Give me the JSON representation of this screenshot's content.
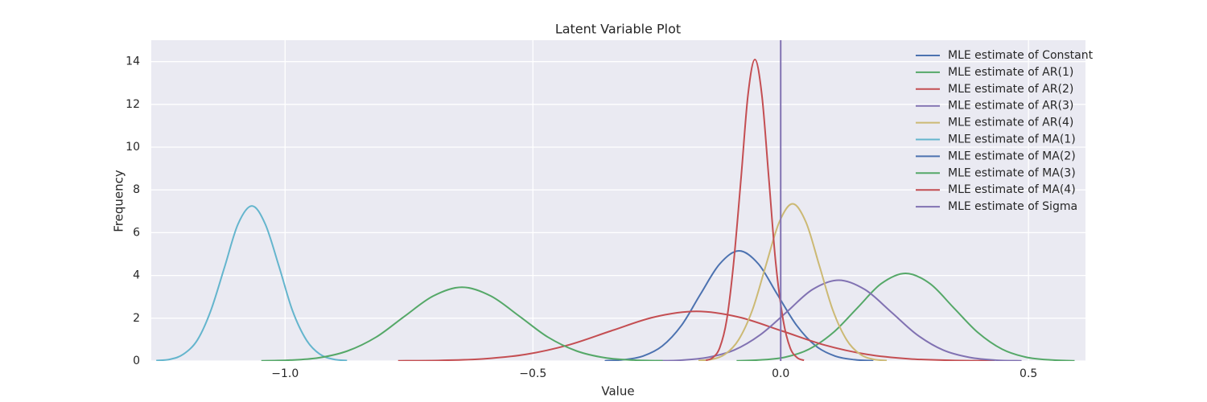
{
  "chart_data": {
    "type": "line",
    "title": "Latent Variable Plot",
    "xlabel": "Value",
    "ylabel": "Frequency",
    "xlim": [
      -1.27,
      0.615
    ],
    "ylim": [
      0,
      15
    ],
    "xticks": [
      {
        "value": -1.0,
        "label": "−1.0"
      },
      {
        "value": -0.5,
        "label": "−0.5"
      },
      {
        "value": 0.0,
        "label": "0.0"
      },
      {
        "value": 0.5,
        "label": "0.5"
      }
    ],
    "yticks": [
      0,
      2,
      4,
      6,
      8,
      10,
      12,
      14
    ],
    "grid": true,
    "legend": "upper right",
    "series": [
      {
        "name": "MLE estimate of Constant",
        "color": "#4c72b0",
        "x": [
          -0.355,
          -0.317,
          -0.278,
          -0.239,
          -0.2,
          -0.162,
          -0.123,
          -0.084,
          -0.045,
          -0.007,
          0.032,
          0.071,
          0.11,
          0.149,
          0.187
        ],
        "values": [
          0.01,
          0.06,
          0.23,
          0.7,
          1.67,
          3.12,
          4.54,
          5.15,
          4.54,
          3.12,
          1.67,
          0.7,
          0.23,
          0.06,
          0.01
        ]
      },
      {
        "name": "MLE estimate of AR(1)",
        "color": "#55a868",
        "x": [
          -0.089,
          -0.04,
          0.009,
          0.057,
          0.106,
          0.155,
          0.203,
          0.252,
          0.301,
          0.349,
          0.398,
          0.447,
          0.495,
          0.544,
          0.593
        ],
        "values": [
          0.01,
          0.05,
          0.18,
          0.55,
          1.33,
          2.49,
          3.62,
          4.1,
          3.62,
          2.49,
          1.33,
          0.55,
          0.18,
          0.05,
          0.01
        ]
      },
      {
        "name": "MLE estimate of AR(2)",
        "color": "#c44e52",
        "x": [
          -0.772,
          -0.686,
          -0.6,
          -0.514,
          -0.428,
          -0.342,
          -0.256,
          -0.17,
          -0.084,
          0.002,
          0.088,
          0.174,
          0.26,
          0.346,
          0.432
        ],
        "values": [
          0.01,
          0.03,
          0.1,
          0.31,
          0.75,
          1.41,
          2.05,
          2.32,
          2.05,
          1.41,
          0.75,
          0.31,
          0.1,
          0.03,
          0.01
        ]
      },
      {
        "name": "MLE estimate of AR(3)",
        "color": "#8172b2",
        "x": [
          -0.252,
          -0.2,
          -0.147,
          -0.094,
          -0.041,
          0.012,
          0.064,
          0.117,
          0.17,
          0.223,
          0.275,
          0.328,
          0.381,
          0.434,
          0.486
        ],
        "values": [
          0.01,
          0.04,
          0.17,
          0.51,
          1.23,
          2.29,
          3.34,
          3.78,
          3.34,
          2.29,
          1.23,
          0.51,
          0.17,
          0.04,
          0.01
        ]
      },
      {
        "name": "MLE estimate of AR(4)",
        "color": "#ccb974",
        "x": [
          -0.166,
          -0.139,
          -0.112,
          -0.085,
          -0.057,
          -0.03,
          -0.003,
          0.024,
          0.051,
          0.078,
          0.105,
          0.133,
          0.16,
          0.187,
          0.214
        ],
        "values": [
          0.02,
          0.08,
          0.32,
          0.99,
          2.39,
          4.46,
          6.49,
          7.35,
          6.49,
          4.46,
          2.39,
          0.99,
          0.32,
          0.08,
          0.02
        ]
      },
      {
        "name": "MLE estimate of MA(1)",
        "color": "#64b5cd",
        "x": [
          -1.26,
          -1.232,
          -1.205,
          -1.177,
          -1.15,
          -1.122,
          -1.095,
          -1.067,
          -1.04,
          -1.012,
          -0.985,
          -0.957,
          -0.93,
          -0.902,
          -0.875
        ],
        "values": [
          0.02,
          0.08,
          0.32,
          0.98,
          2.35,
          4.4,
          6.4,
          7.25,
          6.4,
          4.4,
          2.35,
          0.98,
          0.32,
          0.08,
          0.02
        ]
      },
      {
        "name": "MLE estimate of MA(2)",
        "color": "#4c72b0",
        "x": [],
        "values": []
      },
      {
        "name": "MLE estimate of MA(3)",
        "color": "#55a868",
        "x": [
          -1.048,
          -0.99,
          -0.932,
          -0.874,
          -0.816,
          -0.759,
          -0.701,
          -0.643,
          -0.585,
          -0.527,
          -0.47,
          -0.412,
          -0.354,
          -0.296,
          -0.238
        ],
        "values": [
          0.01,
          0.04,
          0.15,
          0.47,
          1.12,
          2.09,
          3.04,
          3.45,
          3.04,
          2.09,
          1.12,
          0.47,
          0.15,
          0.04,
          0.01
        ]
      },
      {
        "name": "MLE estimate of MA(4)",
        "color": "#c44e52",
        "x": [
          -0.151,
          -0.137,
          -0.123,
          -0.109,
          -0.095,
          -0.08,
          -0.066,
          -0.052,
          -0.038,
          -0.024,
          -0.01,
          0.005,
          0.019,
          0.033,
          0.047
        ],
        "values": [
          0.03,
          0.16,
          0.62,
          1.91,
          4.58,
          8.55,
          12.44,
          14.1,
          12.44,
          8.55,
          4.58,
          1.91,
          0.62,
          0.16,
          0.03
        ]
      },
      {
        "name": "MLE estimate of Sigma",
        "color": "#8172b2",
        "x": [
          0,
          0
        ],
        "values": [
          0,
          15
        ]
      }
    ]
  }
}
